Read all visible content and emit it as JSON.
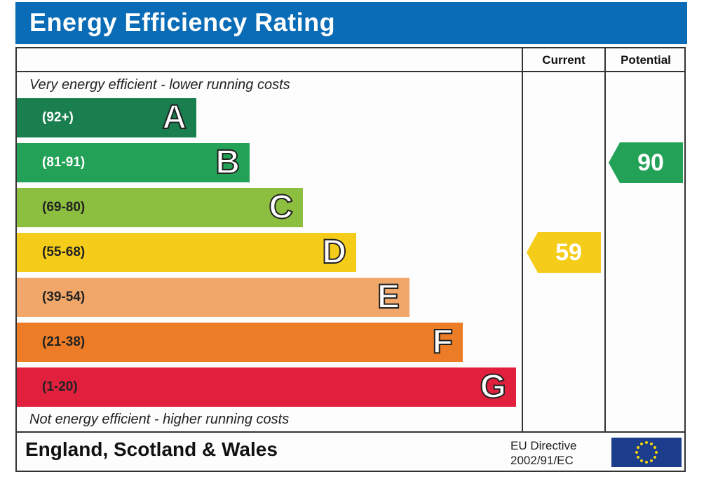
{
  "title": "Energy Efficiency Rating",
  "columns": {
    "current": "Current",
    "potential": "Potential"
  },
  "top_note": "Very energy efficient - lower running costs",
  "bottom_note": "Not energy efficient - higher running costs",
  "footer": {
    "country": "England, Scotland & Wales",
    "directive_line1": "EU Directive",
    "directive_line2": "2002/91/EC"
  },
  "chart_data": {
    "type": "bar",
    "categories": [
      "A",
      "B",
      "C",
      "D",
      "E",
      "F",
      "G"
    ],
    "ranges": [
      "(92+)",
      "(81-91)",
      "(69-80)",
      "(55-68)",
      "(39-54)",
      "(21-38)",
      "(1-20)"
    ],
    "colors": [
      "#1a7f4e",
      "#22a157",
      "#8cbf3f",
      "#f5cc1a",
      "#f2a76a",
      "#ec7d26",
      "#e0203c"
    ],
    "range_text_colors": [
      "#ffffff",
      "#ffffff",
      "#222222",
      "#222222",
      "#222222",
      "#222222",
      "#222222"
    ],
    "current": {
      "value": 59,
      "band": "D",
      "color": "#f5cc1a"
    },
    "potential": {
      "value": 90,
      "band": "B",
      "color": "#22a157"
    }
  }
}
